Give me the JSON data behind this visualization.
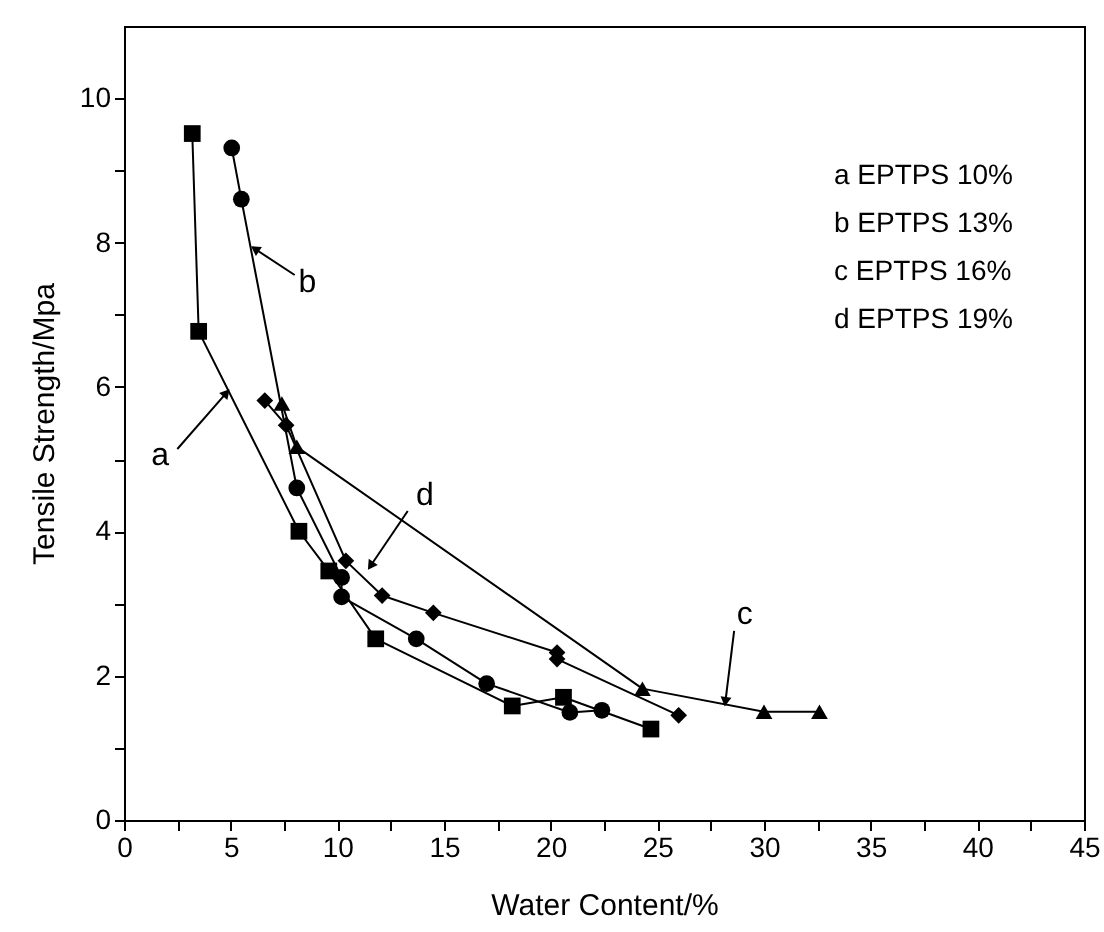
{
  "chart_data": {
    "type": "line",
    "xlabel": "Water Content/%",
    "ylabel": "Tensile Strength/Mpa",
    "xlim": [
      0,
      45
    ],
    "ylim": [
      0,
      11
    ],
    "xticks": [
      0,
      {
        "value": 2.5,
        "label": null
      },
      5,
      {
        "value": 7.5,
        "label": null
      },
      10,
      {
        "value": 12.5,
        "label": null
      },
      15,
      {
        "value": 17.5,
        "label": null
      },
      20,
      {
        "value": 22.5,
        "label": null
      },
      25,
      {
        "value": 27.5,
        "label": null
      },
      30,
      {
        "value": 32.5,
        "label": null
      },
      35,
      {
        "value": 37.5,
        "label": null
      },
      40,
      {
        "value": 42.5,
        "label": null
      },
      45
    ],
    "yticks": [
      0,
      {
        "value": 1,
        "label": null
      },
      2,
      {
        "value": 3,
        "label": null
      },
      4,
      {
        "value": 5,
        "label": null
      },
      6,
      {
        "value": 7,
        "label": null
      },
      8,
      {
        "value": 9,
        "label": null
      },
      10
    ],
    "grid": false,
    "line_style": "solid",
    "annotations": [
      "a EPTPS 10%",
      "b EPTPS 13%",
      "c EPTPS 16%",
      "d EPTPS 19%"
    ],
    "series": [
      {
        "name": "a",
        "color": "#000000",
        "marker": "square",
        "x": [
          3.2,
          3.5,
          8.2,
          9.6,
          11.8,
          18.2,
          20.6,
          24.7
        ],
        "values": [
          9.51,
          6.77,
          4.0,
          3.45,
          2.51,
          1.58,
          1.7,
          1.26
        ]
      },
      {
        "name": "b",
        "color": "#000000",
        "marker": "circle",
        "x": [
          5.05,
          5.5,
          8.1,
          10.2,
          10.2,
          13.7,
          17.0,
          20.9,
          22.4
        ],
        "values": [
          9.31,
          8.6,
          4.6,
          3.36,
          3.09,
          2.51,
          1.89,
          1.49,
          1.52
        ]
      },
      {
        "name": "c",
        "color": "#000000",
        "marker": "triangle",
        "x": [
          7.4,
          8.1,
          24.3,
          30.0,
          32.6
        ],
        "values": [
          5.77,
          5.17,
          1.82,
          1.5,
          1.5
        ]
      },
      {
        "name": "d",
        "color": "#000000",
        "marker": "diamond",
        "x": [
          6.6,
          7.6,
          10.4,
          12.1,
          14.5,
          20.3,
          20.3,
          26.0
        ],
        "values": [
          5.81,
          5.47,
          3.59,
          3.11,
          2.87,
          2.32,
          2.23,
          1.45
        ]
      }
    ]
  }
}
